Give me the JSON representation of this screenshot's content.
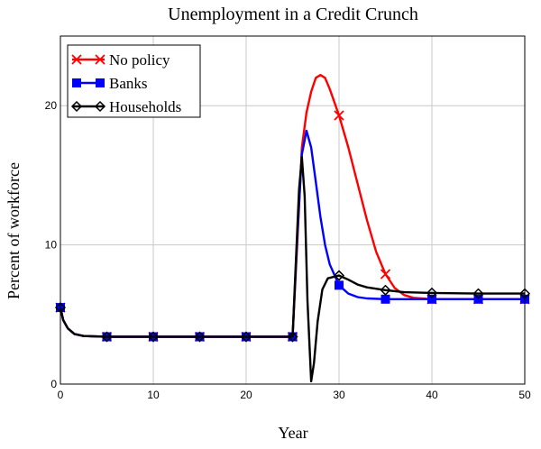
{
  "chart_data": {
    "type": "line",
    "title": "Unemployment in a Credit Crunch",
    "xlabel": "Year",
    "ylabel": "Percent of workforce",
    "xlim": [
      0,
      50
    ],
    "ylim": [
      0,
      25
    ],
    "x_ticks": [
      0,
      10,
      20,
      30,
      40,
      50
    ],
    "y_ticks": [
      0,
      10,
      20
    ],
    "grid": true,
    "legend_position": "top-left",
    "series": [
      {
        "name": "No policy",
        "color": "#ff0000",
        "marker": "x",
        "points": [
          [
            0,
            5.5
          ],
          [
            0.3,
            4.6
          ],
          [
            0.8,
            4.0
          ],
          [
            1.5,
            3.6
          ],
          [
            2.5,
            3.45
          ],
          [
            5,
            3.4
          ],
          [
            10,
            3.4
          ],
          [
            15,
            3.4
          ],
          [
            20,
            3.4
          ],
          [
            25,
            3.4
          ],
          [
            25.5,
            10.0
          ],
          [
            26,
            17.0
          ],
          [
            26.5,
            19.5
          ],
          [
            27,
            21.0
          ],
          [
            27.5,
            22.0
          ],
          [
            28,
            22.2
          ],
          [
            28.5,
            22.0
          ],
          [
            29,
            21.2
          ],
          [
            30,
            19.3
          ],
          [
            31,
            17.0
          ],
          [
            32,
            14.4
          ],
          [
            33,
            11.8
          ],
          [
            34,
            9.5
          ],
          [
            35,
            7.9
          ],
          [
            36,
            6.9
          ],
          [
            37,
            6.4
          ],
          [
            38,
            6.2
          ],
          [
            40,
            6.1
          ],
          [
            45,
            6.1
          ],
          [
            50,
            6.1
          ]
        ],
        "marker_x": [
          0,
          5,
          10,
          15,
          20,
          25,
          30,
          35,
          40,
          45,
          50
        ]
      },
      {
        "name": "Banks",
        "color": "#0000ff",
        "marker": "square",
        "points": [
          [
            0,
            5.5
          ],
          [
            0.3,
            4.6
          ],
          [
            0.8,
            4.0
          ],
          [
            1.5,
            3.6
          ],
          [
            2.5,
            3.45
          ],
          [
            5,
            3.4
          ],
          [
            10,
            3.4
          ],
          [
            15,
            3.4
          ],
          [
            20,
            3.4
          ],
          [
            25,
            3.4
          ],
          [
            25.5,
            10.5
          ],
          [
            26,
            16.5
          ],
          [
            26.5,
            18.2
          ],
          [
            27,
            17.0
          ],
          [
            27.5,
            14.5
          ],
          [
            28,
            12.0
          ],
          [
            28.5,
            10.0
          ],
          [
            29,
            8.6
          ],
          [
            30,
            7.1
          ],
          [
            31,
            6.5
          ],
          [
            32,
            6.25
          ],
          [
            33,
            6.15
          ],
          [
            35,
            6.1
          ],
          [
            40,
            6.1
          ],
          [
            45,
            6.1
          ],
          [
            50,
            6.1
          ]
        ],
        "marker_x": [
          0,
          5,
          10,
          15,
          20,
          25,
          30,
          35,
          40,
          45,
          50
        ]
      },
      {
        "name": "Households",
        "color": "#000000",
        "marker": "diamond",
        "points": [
          [
            0,
            5.5
          ],
          [
            0.3,
            4.6
          ],
          [
            0.8,
            4.0
          ],
          [
            1.5,
            3.6
          ],
          [
            2.5,
            3.45
          ],
          [
            5,
            3.4
          ],
          [
            10,
            3.4
          ],
          [
            15,
            3.4
          ],
          [
            20,
            3.4
          ],
          [
            25,
            3.4
          ],
          [
            25.3,
            8.0
          ],
          [
            25.7,
            14.0
          ],
          [
            26,
            16.3
          ],
          [
            26.3,
            13.5
          ],
          [
            26.6,
            6.0
          ],
          [
            27,
            0.2
          ],
          [
            27.3,
            1.5
          ],
          [
            27.7,
            4.5
          ],
          [
            28.2,
            6.8
          ],
          [
            28.8,
            7.6
          ],
          [
            30,
            7.8
          ],
          [
            31,
            7.5
          ],
          [
            32,
            7.15
          ],
          [
            33,
            6.95
          ],
          [
            35,
            6.75
          ],
          [
            37,
            6.6
          ],
          [
            40,
            6.55
          ],
          [
            45,
            6.5
          ],
          [
            50,
            6.5
          ]
        ],
        "marker_x": [
          0,
          5,
          10,
          15,
          20,
          25,
          30,
          35,
          40,
          45,
          50
        ]
      }
    ]
  }
}
